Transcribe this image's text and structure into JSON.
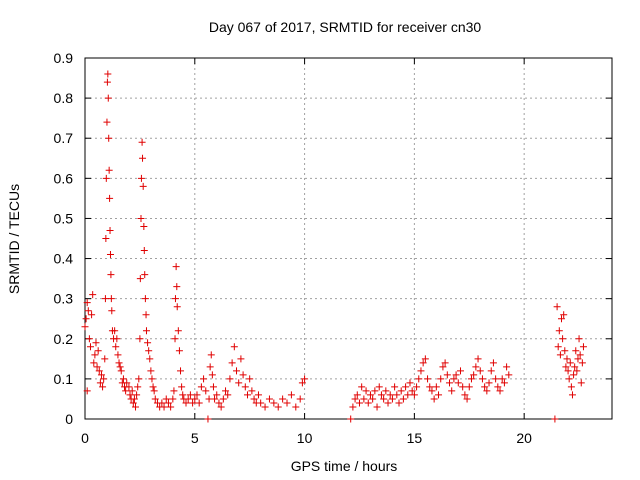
{
  "chart_data": {
    "type": "scatter",
    "title": "Day 067 of 2017, SRMTID for receiver cn30",
    "xlabel": "GPS time / hours",
    "ylabel": "SRMTID / TECUs",
    "xlim": [
      0,
      24
    ],
    "ylim": [
      0,
      0.9
    ],
    "xticks": [
      0,
      5,
      10,
      15,
      20
    ],
    "yticks": [
      0,
      0.1,
      0.2,
      0.3,
      0.4,
      0.5,
      0.6,
      0.7,
      0.8,
      0.9
    ],
    "xtick_labels": [
      "0",
      "5",
      "10",
      "15",
      "20"
    ],
    "ytick_labels": [
      "0",
      "0.1",
      "0.2",
      "0.3",
      "0.4",
      "0.5",
      "0.6",
      "0.7",
      "0.8",
      "0.9"
    ],
    "grid": true,
    "marker": "+",
    "color": "#e00000",
    "series": [
      {
        "name": "SRMTID",
        "points": [
          [
            0.0,
            0.23
          ],
          [
            0.05,
            0.25
          ],
          [
            0.1,
            0.29
          ],
          [
            0.1,
            0.07
          ],
          [
            0.15,
            0.27
          ],
          [
            0.2,
            0.2
          ],
          [
            0.25,
            0.18
          ],
          [
            0.3,
            0.26
          ],
          [
            0.35,
            0.31
          ],
          [
            0.4,
            0.14
          ],
          [
            0.45,
            0.16
          ],
          [
            0.5,
            0.19
          ],
          [
            0.55,
            0.13
          ],
          [
            0.6,
            0.17
          ],
          [
            0.65,
            0.12
          ],
          [
            0.7,
            0.09
          ],
          [
            0.75,
            0.11
          ],
          [
            0.8,
            0.08
          ],
          [
            0.85,
            0.1
          ],
          [
            0.9,
            0.15
          ],
          [
            0.93,
            0.3
          ],
          [
            0.95,
            0.45
          ],
          [
            0.97,
            0.6
          ],
          [
            1.0,
            0.74
          ],
          [
            1.02,
            0.84
          ],
          [
            1.04,
            0.86
          ],
          [
            1.06,
            0.8
          ],
          [
            1.08,
            0.7
          ],
          [
            1.1,
            0.62
          ],
          [
            1.12,
            0.55
          ],
          [
            1.14,
            0.47
          ],
          [
            1.16,
            0.41
          ],
          [
            1.18,
            0.36
          ],
          [
            1.2,
            0.3
          ],
          [
            1.22,
            0.27
          ],
          [
            1.25,
            0.22
          ],
          [
            1.3,
            0.2
          ],
          [
            1.35,
            0.22
          ],
          [
            1.4,
            0.18
          ],
          [
            1.45,
            0.2
          ],
          [
            1.5,
            0.16
          ],
          [
            1.55,
            0.14
          ],
          [
            1.6,
            0.13
          ],
          [
            1.65,
            0.12
          ],
          [
            1.7,
            0.09
          ],
          [
            1.75,
            0.1
          ],
          [
            1.8,
            0.08
          ],
          [
            1.85,
            0.07
          ],
          [
            1.9,
            0.09
          ],
          [
            2.0,
            0.08
          ],
          [
            2.05,
            0.06
          ],
          [
            2.1,
            0.05
          ],
          [
            2.15,
            0.07
          ],
          [
            2.2,
            0.04
          ],
          [
            2.25,
            0.05
          ],
          [
            2.3,
            0.03
          ],
          [
            2.35,
            0.06
          ],
          [
            2.4,
            0.08
          ],
          [
            2.45,
            0.1
          ],
          [
            2.5,
            0.2
          ],
          [
            2.52,
            0.35
          ],
          [
            2.55,
            0.5
          ],
          [
            2.57,
            0.6
          ],
          [
            2.6,
            0.69
          ],
          [
            2.62,
            0.65
          ],
          [
            2.65,
            0.58
          ],
          [
            2.68,
            0.48
          ],
          [
            2.7,
            0.42
          ],
          [
            2.72,
            0.36
          ],
          [
            2.75,
            0.3
          ],
          [
            2.78,
            0.26
          ],
          [
            2.8,
            0.22
          ],
          [
            2.85,
            0.19
          ],
          [
            2.9,
            0.17
          ],
          [
            2.95,
            0.15
          ],
          [
            3.0,
            0.12
          ],
          [
            3.05,
            0.1
          ],
          [
            3.1,
            0.08
          ],
          [
            3.15,
            0.07
          ],
          [
            3.2,
            0.05
          ],
          [
            3.3,
            0.04
          ],
          [
            3.4,
            0.03
          ],
          [
            3.5,
            0.04
          ],
          [
            3.6,
            0.03
          ],
          [
            3.7,
            0.05
          ],
          [
            3.8,
            0.04
          ],
          [
            3.9,
            0.03
          ],
          [
            4.0,
            0.05
          ],
          [
            4.05,
            0.07
          ],
          [
            4.1,
            0.2
          ],
          [
            4.12,
            0.3
          ],
          [
            4.15,
            0.38
          ],
          [
            4.18,
            0.33
          ],
          [
            4.2,
            0.28
          ],
          [
            4.25,
            0.22
          ],
          [
            4.3,
            0.17
          ],
          [
            4.35,
            0.12
          ],
          [
            4.4,
            0.08
          ],
          [
            4.45,
            0.06
          ],
          [
            4.5,
            0.05
          ],
          [
            4.6,
            0.04
          ],
          [
            4.7,
            0.05
          ],
          [
            4.8,
            0.06
          ],
          [
            4.9,
            0.04
          ],
          [
            5.0,
            0.05
          ],
          [
            5.1,
            0.06
          ],
          [
            5.2,
            0.04
          ],
          [
            5.3,
            0.08
          ],
          [
            5.4,
            0.1
          ],
          [
            5.5,
            0.07
          ],
          [
            5.6,
            0.0
          ],
          [
            5.65,
            0.05
          ],
          [
            5.7,
            0.13
          ],
          [
            5.75,
            0.16
          ],
          [
            5.8,
            0.11
          ],
          [
            5.85,
            0.08
          ],
          [
            5.9,
            0.05
          ],
          [
            6.0,
            0.06
          ],
          [
            6.1,
            0.04
          ],
          [
            6.2,
            0.03
          ],
          [
            6.3,
            0.05
          ],
          [
            6.4,
            0.07
          ],
          [
            6.5,
            0.06
          ],
          [
            6.6,
            0.1
          ],
          [
            6.7,
            0.14
          ],
          [
            6.8,
            0.18
          ],
          [
            6.9,
            0.12
          ],
          [
            7.0,
            0.09
          ],
          [
            7.1,
            0.15
          ],
          [
            7.2,
            0.11
          ],
          [
            7.3,
            0.08
          ],
          [
            7.4,
            0.06
          ],
          [
            7.5,
            0.1
          ],
          [
            7.6,
            0.07
          ],
          [
            7.7,
            0.05
          ],
          [
            7.8,
            0.04
          ],
          [
            7.9,
            0.06
          ],
          [
            8.0,
            0.04
          ],
          [
            8.2,
            0.03
          ],
          [
            8.4,
            0.05
          ],
          [
            8.6,
            0.04
          ],
          [
            8.8,
            0.03
          ],
          [
            9.0,
            0.05
          ],
          [
            9.2,
            0.04
          ],
          [
            9.4,
            0.06
          ],
          [
            9.6,
            0.03
          ],
          [
            9.8,
            0.05
          ],
          [
            9.9,
            0.09
          ],
          [
            10.0,
            0.1
          ],
          [
            12.1,
            0.0
          ],
          [
            12.2,
            0.03
          ],
          [
            12.3,
            0.05
          ],
          [
            12.4,
            0.06
          ],
          [
            12.5,
            0.04
          ],
          [
            12.6,
            0.08
          ],
          [
            12.7,
            0.05
          ],
          [
            12.8,
            0.07
          ],
          [
            12.9,
            0.04
          ],
          [
            13.0,
            0.06
          ],
          [
            13.1,
            0.05
          ],
          [
            13.2,
            0.07
          ],
          [
            13.3,
            0.03
          ],
          [
            13.4,
            0.08
          ],
          [
            13.5,
            0.06
          ],
          [
            13.6,
            0.05
          ],
          [
            13.7,
            0.07
          ],
          [
            13.8,
            0.04
          ],
          [
            13.9,
            0.06
          ],
          [
            14.0,
            0.05
          ],
          [
            14.1,
            0.08
          ],
          [
            14.2,
            0.06
          ],
          [
            14.3,
            0.04
          ],
          [
            14.4,
            0.07
          ],
          [
            14.5,
            0.05
          ],
          [
            14.6,
            0.08
          ],
          [
            14.7,
            0.06
          ],
          [
            14.8,
            0.09
          ],
          [
            14.9,
            0.07
          ],
          [
            15.0,
            0.06
          ],
          [
            15.1,
            0.08
          ],
          [
            15.2,
            0.1
          ],
          [
            15.3,
            0.12
          ],
          [
            15.4,
            0.14
          ],
          [
            15.5,
            0.15
          ],
          [
            15.6,
            0.1
          ],
          [
            15.7,
            0.08
          ],
          [
            15.8,
            0.07
          ],
          [
            15.9,
            0.05
          ],
          [
            16.0,
            0.08
          ],
          [
            16.1,
            0.06
          ],
          [
            16.2,
            0.1
          ],
          [
            16.3,
            0.13
          ],
          [
            16.4,
            0.14
          ],
          [
            16.5,
            0.11
          ],
          [
            16.6,
            0.09
          ],
          [
            16.7,
            0.07
          ],
          [
            16.8,
            0.1
          ],
          [
            16.9,
            0.11
          ],
          [
            17.0,
            0.09
          ],
          [
            17.1,
            0.12
          ],
          [
            17.2,
            0.08
          ],
          [
            17.3,
            0.06
          ],
          [
            17.4,
            0.05
          ],
          [
            17.5,
            0.08
          ],
          [
            17.6,
            0.1
          ],
          [
            17.7,
            0.11
          ],
          [
            17.8,
            0.13
          ],
          [
            17.9,
            0.15
          ],
          [
            18.0,
            0.12
          ],
          [
            18.1,
            0.1
          ],
          [
            18.2,
            0.08
          ],
          [
            18.3,
            0.07
          ],
          [
            18.4,
            0.09
          ],
          [
            18.5,
            0.12
          ],
          [
            18.6,
            0.14
          ],
          [
            18.7,
            0.1
          ],
          [
            18.8,
            0.08
          ],
          [
            18.9,
            0.07
          ],
          [
            19.0,
            0.1
          ],
          [
            19.1,
            0.09
          ],
          [
            19.2,
            0.13
          ],
          [
            19.3,
            0.11
          ],
          [
            21.4,
            0.0
          ],
          [
            21.5,
            0.28
          ],
          [
            21.55,
            0.18
          ],
          [
            21.6,
            0.22
          ],
          [
            21.65,
            0.16
          ],
          [
            21.7,
            0.25
          ],
          [
            21.75,
            0.2
          ],
          [
            21.8,
            0.26
          ],
          [
            21.85,
            0.17
          ],
          [
            21.9,
            0.13
          ],
          [
            21.95,
            0.15
          ],
          [
            22.0,
            0.12
          ],
          [
            22.05,
            0.1
          ],
          [
            22.1,
            0.14
          ],
          [
            22.15,
            0.08
          ],
          [
            22.2,
            0.06
          ],
          [
            22.25,
            0.11
          ],
          [
            22.3,
            0.13
          ],
          [
            22.35,
            0.17
          ],
          [
            22.4,
            0.12
          ],
          [
            22.45,
            0.15
          ],
          [
            22.5,
            0.2
          ],
          [
            22.55,
            0.16
          ],
          [
            22.6,
            0.09
          ],
          [
            22.65,
            0.14
          ],
          [
            22.7,
            0.18
          ]
        ]
      }
    ]
  }
}
